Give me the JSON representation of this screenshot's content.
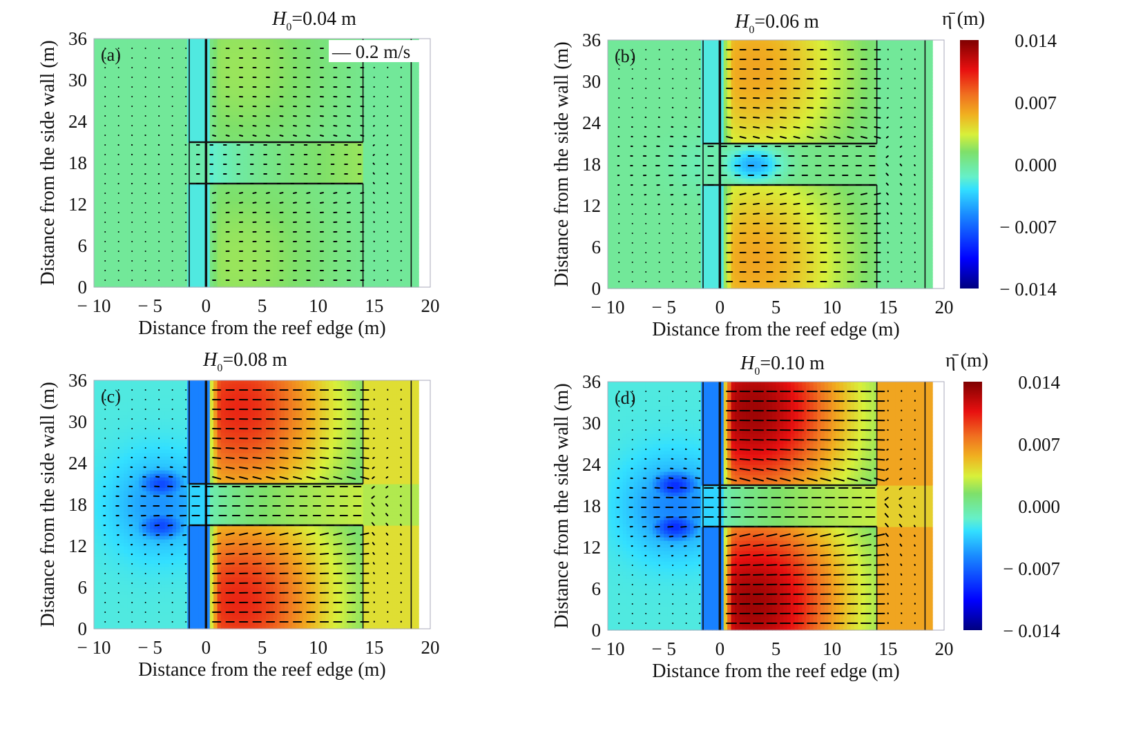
{
  "figure": {
    "description": "Mean water level (color contours) and mean current vectors over a reef flat with a channel, for four incident wave heights",
    "colormap": [
      "#00007f",
      "#0000ff",
      "#007fff",
      "#00ffff",
      "#7fff7f",
      "#ffff00",
      "#ff7f00",
      "#ff0000",
      "#7f0000"
    ]
  },
  "chart_data": [
    {
      "type": "heatmap",
      "panel_label": "(a)",
      "title": "H0=0.04 m",
      "title_parts": {
        "symbol": "H",
        "subscript": "0",
        "rest": "=0.04 m"
      },
      "xlabel": "Distance from the reef edge (m)",
      "ylabel": "Distance from the side wall (m)",
      "xlim": [
        -10,
        20
      ],
      "ylim": [
        0,
        36
      ],
      "xticks": [
        -10,
        -5,
        0,
        5,
        10,
        15,
        20
      ],
      "xtick_labels": [
        "− 10",
        "− 5",
        "0",
        "5",
        "10",
        "15",
        "20"
      ],
      "yticks": [
        0,
        6,
        12,
        18,
        24,
        30,
        36
      ],
      "ytick_labels": [
        "0",
        "6",
        "12",
        "18",
        "24",
        "30",
        "36"
      ],
      "reference_vector": "— 0.2 m/s",
      "channel_y_range_m": [
        15,
        21
      ],
      "reef_flat_x_range_m": [
        0,
        14
      ],
      "eta_range_m": {
        "offshore": 0.0,
        "reef_flat_max": 0.002,
        "channel": 0.0,
        "lagoon": 0.0
      }
    },
    {
      "type": "heatmap",
      "panel_label": "(b)",
      "title": "H0=0.06 m",
      "title_parts": {
        "symbol": "H",
        "subscript": "0",
        "rest": "=0.06 m"
      },
      "xlabel": "Distance from the reef edge (m)",
      "ylabel": "Distance from the side wall (m)",
      "xlim": [
        -10,
        20
      ],
      "ylim": [
        0,
        36
      ],
      "xticks": [
        -10,
        -5,
        0,
        5,
        10,
        15,
        20
      ],
      "xtick_labels": [
        "− 10",
        "− 5",
        "0",
        "5",
        "10",
        "15",
        "20"
      ],
      "yticks": [
        0,
        6,
        12,
        18,
        24,
        30,
        36
      ],
      "ytick_labels": [
        "0",
        "6",
        "12",
        "18",
        "24",
        "30",
        "36"
      ],
      "colorbar": {
        "label": "η̄ (m)",
        "ticks": [
          0.014,
          0.007,
          0.0,
          -0.007,
          -0.014
        ],
        "tick_labels": [
          "0.014",
          "0.007",
          "0.000",
          "− 0.007",
          "− 0.014"
        ],
        "range": [
          -0.014,
          0.014
        ]
      },
      "eta_range_m": {
        "offshore": 0.0,
        "reef_flat_max": 0.006,
        "channel": -0.004,
        "lagoon": 0.0
      }
    },
    {
      "type": "heatmap",
      "panel_label": "(c)",
      "title": "H0=0.08 m",
      "title_parts": {
        "symbol": "H",
        "subscript": "0",
        "rest": "=0.08 m"
      },
      "xlabel": "Distance from the reef edge (m)",
      "ylabel": "Distance from the side wall (m)",
      "xlim": [
        -10,
        20
      ],
      "ylim": [
        0,
        36
      ],
      "xticks": [
        -10,
        -5,
        0,
        5,
        10,
        15,
        20
      ],
      "xtick_labels": [
        "− 10",
        "− 5",
        "0",
        "5",
        "10",
        "15",
        "20"
      ],
      "yticks": [
        0,
        6,
        12,
        18,
        24,
        30,
        36
      ],
      "ytick_labels": [
        "0",
        "6",
        "12",
        "18",
        "24",
        "30",
        "36"
      ],
      "eta_range_m": {
        "offshore": -0.002,
        "reef_flat_max": 0.01,
        "channel": 0.001,
        "lagoon": 0.004,
        "offshore_min": -0.008
      }
    },
    {
      "type": "heatmap",
      "panel_label": "(d)",
      "title": "H0=0.10 m",
      "title_parts": {
        "symbol": "H",
        "subscript": "0",
        "rest": "=0.10 m"
      },
      "xlabel": "Distance from the reef edge (m)",
      "ylabel": "Distance from the side wall (m)",
      "xlim": [
        -10,
        20
      ],
      "ylim": [
        0,
        36
      ],
      "xticks": [
        -10,
        -5,
        0,
        5,
        10,
        15,
        20
      ],
      "xtick_labels": [
        "− 10",
        "− 5",
        "0",
        "5",
        "10",
        "15",
        "20"
      ],
      "yticks": [
        0,
        6,
        12,
        18,
        24,
        30,
        36
      ],
      "ytick_labels": [
        "0",
        "6",
        "12",
        "18",
        "24",
        "30",
        "36"
      ],
      "colorbar": {
        "label": "η̄ (m)",
        "ticks": [
          0.014,
          0.007,
          0.0,
          -0.007,
          -0.014
        ],
        "tick_labels": [
          "0.014",
          "0.007",
          "0.000",
          "− 0.007",
          "− 0.014"
        ],
        "range": [
          -0.014,
          0.014
        ]
      },
      "eta_range_m": {
        "offshore": -0.002,
        "reef_flat_max": 0.013,
        "channel": 0.001,
        "lagoon": 0.006,
        "offshore_min": -0.009
      }
    }
  ]
}
